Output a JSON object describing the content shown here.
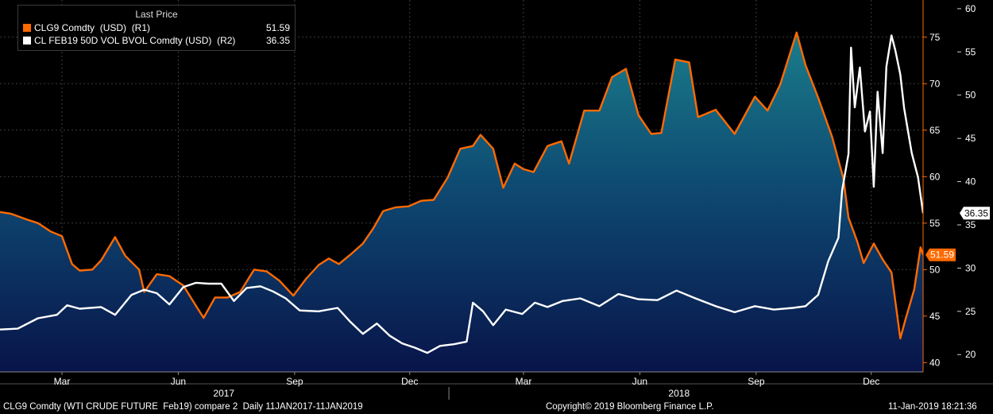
{
  "legend": {
    "title": "Last Price",
    "series": [
      {
        "name": "CLG9 Comdty  (USD)  (R1)",
        "value": "51.59",
        "color": "#ff6a00"
      },
      {
        "name": "CL FEB19 50D VOL BVOL Comdty (USD)  (R2)",
        "value": "36.35",
        "color": "#ffffff"
      }
    ]
  },
  "footer": {
    "left": "CLG9 Comdty (WTI CRUDE FUTURE  Feb19) compare 2  Daily 11JAN2017-11JAN2019",
    "center": "Copyright© 2019 Bloomberg Finance L.P.",
    "right": "11-Jan-2019 18:21:36"
  },
  "chart_data": {
    "type": "line",
    "x_tick_labels": [
      "Mar",
      "Jun",
      "Sep",
      "Dec",
      "Mar",
      "Jun",
      "Sep",
      "Dec"
    ],
    "x_tick_positions": [
      "2017-03-01",
      "2017-06-01",
      "2017-09-01",
      "2017-12-01",
      "2018-03-01",
      "2018-06-01",
      "2018-09-01",
      "2018-12-01"
    ],
    "year_labels": [
      {
        "label": "2017",
        "start": "2017-01-11",
        "end": "2017-12-31"
      },
      {
        "label": "2018",
        "start": "2018-01-01",
        "end": "2018-12-31"
      }
    ],
    "x_range": [
      "2017-01-11",
      "2019-01-11"
    ],
    "axes": {
      "R1": {
        "ticks": [
          40,
          45,
          50,
          55,
          60,
          65,
          70,
          75
        ],
        "range": [
          39,
          79
        ]
      },
      "R2": {
        "ticks": [
          20,
          25,
          30,
          35,
          40,
          45,
          50,
          55,
          60
        ],
        "range": [
          18,
          61
        ]
      }
    },
    "value_tags": [
      {
        "axis": "R1",
        "value": 51.59,
        "label": "51.59",
        "color": "#ff6a00",
        "text_color": "#ffffff"
      },
      {
        "axis": "R2",
        "value": 36.35,
        "label": "36.35",
        "color": "#ffffff",
        "text_color": "#000000"
      }
    ],
    "grid": true,
    "series": [
      {
        "name": "CLG9 Comdty  (USD)  (R1)",
        "axis": "R1",
        "color": "#ff6a00",
        "area_fill": true,
        "points": [
          [
            "2017-01-11",
            56.2
          ],
          [
            "2017-01-20",
            56.0
          ],
          [
            "2017-02-01",
            55.4
          ],
          [
            "2017-02-10",
            55.0
          ],
          [
            "2017-02-20",
            54.1
          ],
          [
            "2017-03-01",
            53.6
          ],
          [
            "2017-03-09",
            50.6
          ],
          [
            "2017-03-15",
            49.9
          ],
          [
            "2017-03-25",
            50.0
          ],
          [
            "2017-04-01",
            51.0
          ],
          [
            "2017-04-12",
            53.5
          ],
          [
            "2017-04-20",
            51.5
          ],
          [
            "2017-05-01",
            50.0
          ],
          [
            "2017-05-05",
            47.6
          ],
          [
            "2017-05-15",
            49.5
          ],
          [
            "2017-05-25",
            49.3
          ],
          [
            "2017-06-05",
            48.3
          ],
          [
            "2017-06-15",
            46.1
          ],
          [
            "2017-06-21",
            44.8
          ],
          [
            "2017-06-30",
            47.0
          ],
          [
            "2017-07-10",
            47.0
          ],
          [
            "2017-07-20",
            47.6
          ],
          [
            "2017-07-31",
            50.0
          ],
          [
            "2017-08-10",
            49.8
          ],
          [
            "2017-08-20",
            48.8
          ],
          [
            "2017-08-31",
            47.2
          ],
          [
            "2017-09-10",
            49.0
          ],
          [
            "2017-09-20",
            50.5
          ],
          [
            "2017-09-28",
            51.2
          ],
          [
            "2017-10-06",
            50.6
          ],
          [
            "2017-10-15",
            51.6
          ],
          [
            "2017-10-25",
            52.8
          ],
          [
            "2017-11-02",
            54.4
          ],
          [
            "2017-11-10",
            56.3
          ],
          [
            "2017-11-20",
            56.7
          ],
          [
            "2017-11-30",
            56.8
          ],
          [
            "2017-12-10",
            57.4
          ],
          [
            "2017-12-20",
            57.5
          ],
          [
            "2017-12-31",
            59.9
          ],
          [
            "2018-01-10",
            63.0
          ],
          [
            "2018-01-20",
            63.3
          ],
          [
            "2018-01-26",
            64.5
          ],
          [
            "2018-02-05",
            63.0
          ],
          [
            "2018-02-13",
            58.8
          ],
          [
            "2018-02-22",
            61.4
          ],
          [
            "2018-03-01",
            60.8
          ],
          [
            "2018-03-09",
            60.5
          ],
          [
            "2018-03-20",
            63.3
          ],
          [
            "2018-03-31",
            63.8
          ],
          [
            "2018-04-06",
            61.4
          ],
          [
            "2018-04-18",
            67.1
          ],
          [
            "2018-04-30",
            67.1
          ],
          [
            "2018-05-10",
            70.7
          ],
          [
            "2018-05-21",
            71.6
          ],
          [
            "2018-05-31",
            66.6
          ],
          [
            "2018-06-10",
            64.6
          ],
          [
            "2018-06-18",
            64.7
          ],
          [
            "2018-06-29",
            72.6
          ],
          [
            "2018-07-10",
            72.3
          ],
          [
            "2018-07-17",
            66.4
          ],
          [
            "2018-07-31",
            67.2
          ],
          [
            "2018-08-15",
            64.6
          ],
          [
            "2018-08-31",
            68.6
          ],
          [
            "2018-09-10",
            67.1
          ],
          [
            "2018-09-20",
            69.9
          ],
          [
            "2018-10-03",
            75.5
          ],
          [
            "2018-10-10",
            72.0
          ],
          [
            "2018-10-20",
            68.5
          ],
          [
            "2018-10-31",
            64.3
          ],
          [
            "2018-11-09",
            59.8
          ],
          [
            "2018-11-13",
            55.6
          ],
          [
            "2018-11-20",
            53.0
          ],
          [
            "2018-11-25",
            50.7
          ],
          [
            "2018-12-03",
            52.8
          ],
          [
            "2018-12-10",
            51.1
          ],
          [
            "2018-12-17",
            49.7
          ],
          [
            "2018-12-24",
            42.6
          ],
          [
            "2018-12-28",
            44.6
          ],
          [
            "2019-01-04",
            47.9
          ],
          [
            "2019-01-09",
            52.4
          ],
          [
            "2019-01-11",
            51.59
          ]
        ]
      },
      {
        "name": "CL FEB19 50D VOL BVOL Comdty (USD)  (R2)",
        "axis": "R2",
        "color": "#ffffff",
        "area_fill": false,
        "points": [
          [
            "2017-01-11",
            22.9
          ],
          [
            "2017-01-25",
            23.0
          ],
          [
            "2017-02-10",
            24.2
          ],
          [
            "2017-02-25",
            24.6
          ],
          [
            "2017-03-05",
            25.7
          ],
          [
            "2017-03-15",
            25.3
          ],
          [
            "2017-04-01",
            25.5
          ],
          [
            "2017-04-12",
            24.6
          ],
          [
            "2017-04-25",
            26.9
          ],
          [
            "2017-05-05",
            27.5
          ],
          [
            "2017-05-15",
            27.1
          ],
          [
            "2017-05-25",
            25.8
          ],
          [
            "2017-06-05",
            27.8
          ],
          [
            "2017-06-15",
            28.3
          ],
          [
            "2017-06-25",
            28.2
          ],
          [
            "2017-07-05",
            28.2
          ],
          [
            "2017-07-15",
            26.2
          ],
          [
            "2017-07-25",
            27.7
          ],
          [
            "2017-08-05",
            27.9
          ],
          [
            "2017-08-15",
            27.3
          ],
          [
            "2017-08-25",
            26.5
          ],
          [
            "2017-09-05",
            25.1
          ],
          [
            "2017-09-20",
            25.0
          ],
          [
            "2017-10-05",
            25.4
          ],
          [
            "2017-10-15",
            23.8
          ],
          [
            "2017-10-25",
            22.4
          ],
          [
            "2017-11-05",
            23.6
          ],
          [
            "2017-11-15",
            22.2
          ],
          [
            "2017-11-25",
            21.3
          ],
          [
            "2017-12-05",
            20.8
          ],
          [
            "2017-12-15",
            20.2
          ],
          [
            "2017-12-25",
            21.0
          ],
          [
            "2018-01-05",
            21.2
          ],
          [
            "2018-01-15",
            21.5
          ],
          [
            "2018-01-20",
            26.0
          ],
          [
            "2018-01-28",
            25.0
          ],
          [
            "2018-02-05",
            23.4
          ],
          [
            "2018-02-15",
            25.2
          ],
          [
            "2018-02-28",
            24.7
          ],
          [
            "2018-03-10",
            26.0
          ],
          [
            "2018-03-20",
            25.5
          ],
          [
            "2018-04-01",
            26.2
          ],
          [
            "2018-04-15",
            26.5
          ],
          [
            "2018-04-30",
            25.6
          ],
          [
            "2018-05-15",
            27.0
          ],
          [
            "2018-05-31",
            26.4
          ],
          [
            "2018-06-15",
            26.3
          ],
          [
            "2018-06-30",
            27.4
          ],
          [
            "2018-07-15",
            26.5
          ],
          [
            "2018-07-31",
            25.6
          ],
          [
            "2018-08-15",
            24.9
          ],
          [
            "2018-08-31",
            25.6
          ],
          [
            "2018-09-15",
            25.2
          ],
          [
            "2018-09-30",
            25.4
          ],
          [
            "2018-10-10",
            25.6
          ],
          [
            "2018-10-20",
            26.9
          ],
          [
            "2018-10-28",
            30.8
          ],
          [
            "2018-11-05",
            33.5
          ],
          [
            "2018-11-08",
            39.0
          ],
          [
            "2018-11-13",
            43.2
          ],
          [
            "2018-11-15",
            55.5
          ],
          [
            "2018-11-18",
            48.6
          ],
          [
            "2018-11-22",
            53.2
          ],
          [
            "2018-11-26",
            45.8
          ],
          [
            "2018-11-30",
            48.1
          ],
          [
            "2018-12-03",
            39.4
          ],
          [
            "2018-12-06",
            50.4
          ],
          [
            "2018-12-10",
            43.3
          ],
          [
            "2018-12-13",
            53.3
          ],
          [
            "2018-12-17",
            56.9
          ],
          [
            "2018-12-20",
            55.2
          ],
          [
            "2018-12-24",
            52.4
          ],
          [
            "2018-12-27",
            48.5
          ],
          [
            "2019-01-02",
            43.3
          ],
          [
            "2019-01-07",
            40.5
          ],
          [
            "2019-01-11",
            36.35
          ]
        ]
      }
    ]
  }
}
